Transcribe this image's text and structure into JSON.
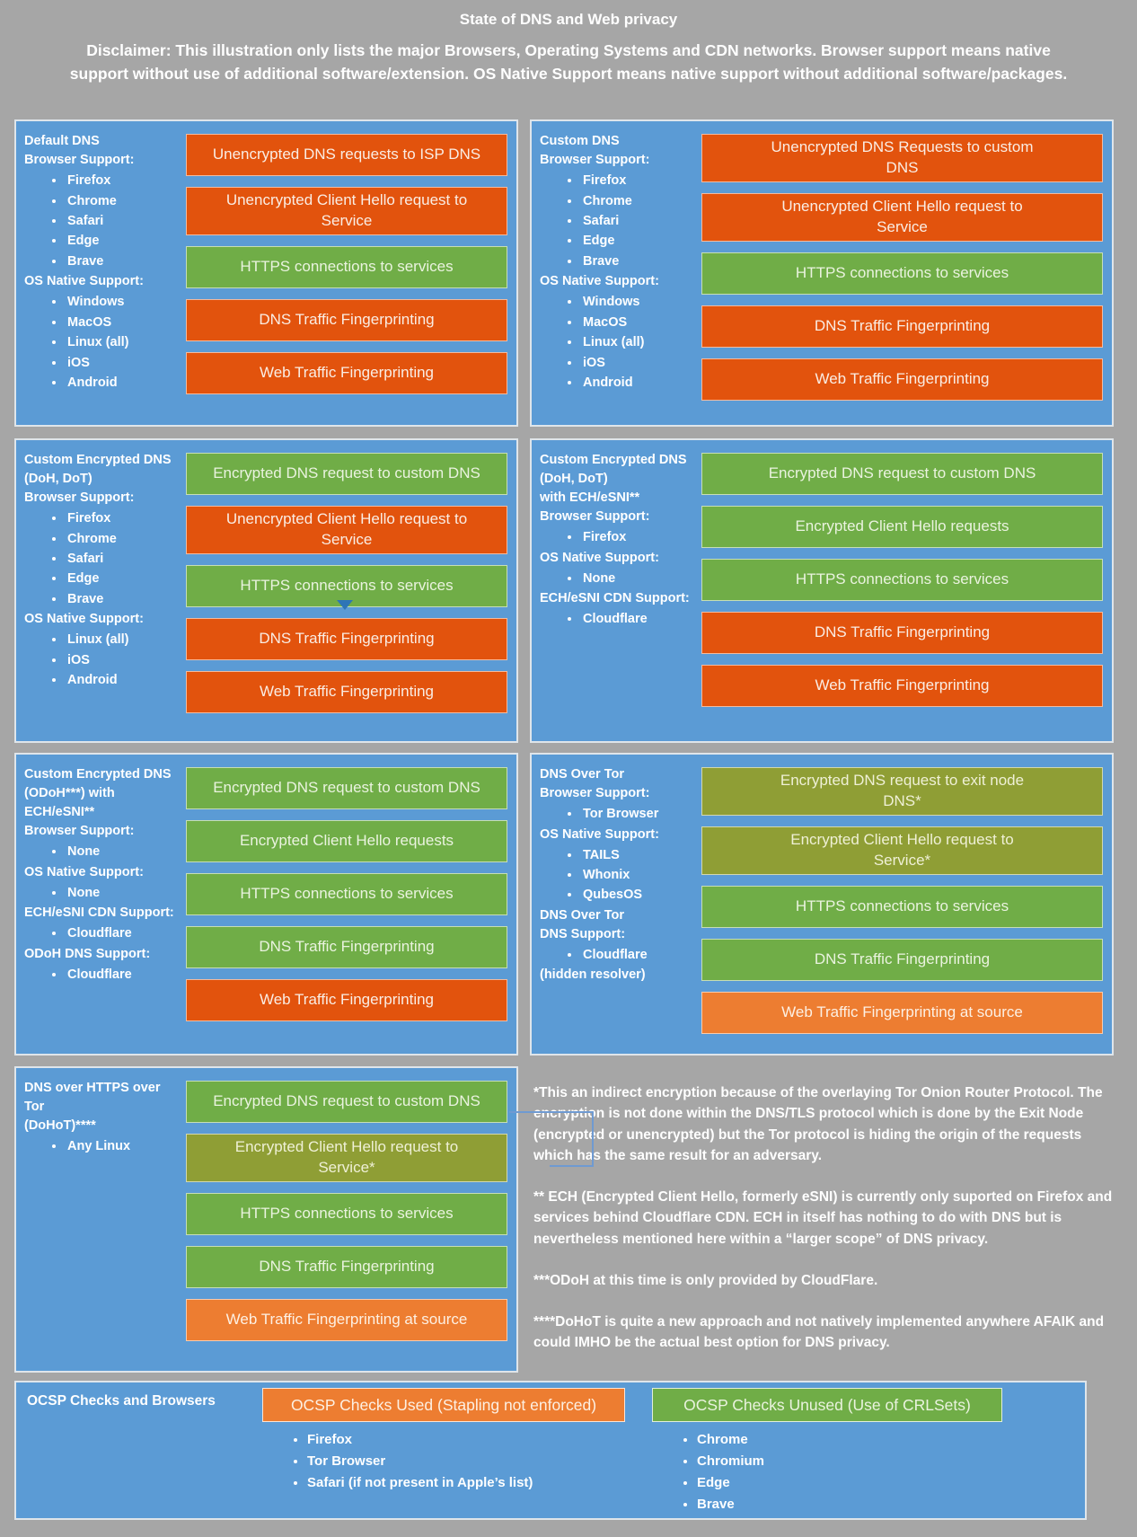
{
  "header": {
    "title": "State of DNS and Web privacy",
    "disclaimer": "Disclaimer: This illustration only lists the major Browsers, Operating Systems and CDN networks. Browser support means native support without use of additional software/extension. OS Native Support means native support without additional software/packages."
  },
  "colors": {
    "page_gray": "#A6A6A6",
    "panel_blue": "#5B9BD5",
    "bad": "#E2530D",
    "good": "#70AD47",
    "tor": "#8F9E35",
    "warn": "#ED7D31",
    "bar_text": {
      "bad": "#FAEDE4",
      "good": "#EAF3DF",
      "tor": "#EFF0D6",
      "warn": "#FDF0E3"
    }
  },
  "panels": [
    {
      "id": "default-dns",
      "sections": [
        {
          "h": "Default DNS"
        },
        {
          "h": "Browser Support:"
        },
        {
          "b": [
            "Firefox",
            "Chrome",
            "Safari",
            "Edge",
            "Brave"
          ]
        },
        {
          "h": "OS Native Support:"
        },
        {
          "b": [
            "Windows",
            "MacOS",
            "Linux (all)",
            "iOS",
            "Android"
          ]
        }
      ],
      "bars": [
        {
          "label": "Unencrypted DNS requests to ISP DNS",
          "color": "bad"
        },
        {
          "label": "Unencrypted Client Hello request to\nService",
          "color": "bad"
        },
        {
          "label": "HTTPS connections to services",
          "color": "good"
        },
        {
          "label": "DNS Traffic Fingerprinting",
          "color": "bad"
        },
        {
          "label": "Web Traffic Fingerprinting",
          "color": "bad"
        }
      ]
    },
    {
      "id": "custom-dns",
      "sections": [
        {
          "h": "Custom DNS"
        },
        {
          "h": "Browser Support:"
        },
        {
          "b": [
            "Firefox",
            "Chrome",
            "Safari",
            "Edge",
            "Brave"
          ]
        },
        {
          "h": "OS Native Support:"
        },
        {
          "b": [
            "Windows",
            "MacOS",
            "Linux (all)",
            "iOS",
            "Android"
          ]
        }
      ],
      "bars": [
        {
          "label": "Unencrypted DNS Requests to custom\nDNS",
          "color": "bad"
        },
        {
          "label": "Unencrypted Client Hello request to\nService",
          "color": "bad"
        },
        {
          "label": "HTTPS connections to services",
          "color": "good"
        },
        {
          "label": "DNS Traffic Fingerprinting",
          "color": "bad"
        },
        {
          "label": "Web Traffic Fingerprinting",
          "color": "bad"
        }
      ]
    },
    {
      "id": "custom-encrypted-dns",
      "sections": [
        {
          "h": "Custom Encrypted DNS\n(DoH, DoT)"
        },
        {
          "h": "Browser Support:"
        },
        {
          "b": [
            "Firefox",
            "Chrome",
            "Safari",
            "Edge",
            "Brave"
          ]
        },
        {
          "h": "OS Native Support:"
        },
        {
          "b": [
            "Linux (all)",
            "iOS",
            "Android"
          ]
        }
      ],
      "bars": [
        {
          "label": "Encrypted DNS request to custom DNS",
          "color": "good"
        },
        {
          "label": "Unencrypted Client Hello request to\nService",
          "color": "bad"
        },
        {
          "label": "HTTPS connections to services",
          "color": "good"
        },
        {
          "label": "DNS Traffic Fingerprinting",
          "color": "bad"
        },
        {
          "label": "Web Traffic Fingerprinting",
          "color": "bad"
        }
      ]
    },
    {
      "id": "custom-encrypted-dns-ech",
      "sections": [
        {
          "h": "Custom Encrypted DNS\n(DoH, DoT)\nwith ECH/eSNI**"
        },
        {
          "h": "Browser Support:"
        },
        {
          "b": [
            "Firefox"
          ]
        },
        {
          "h": "OS Native Support:"
        },
        {
          "b": [
            "None"
          ]
        },
        {
          "h": "ECH/eSNI CDN Support:"
        },
        {
          "b": [
            "Cloudflare"
          ]
        }
      ],
      "bars": [
        {
          "label": "Encrypted DNS request to custom DNS",
          "color": "good"
        },
        {
          "label": "Encrypted Client Hello requests",
          "color": "good"
        },
        {
          "label": "HTTPS connections to services",
          "color": "good"
        },
        {
          "label": "DNS Traffic Fingerprinting",
          "color": "bad"
        },
        {
          "label": "Web Traffic Fingerprinting",
          "color": "bad"
        }
      ]
    },
    {
      "id": "custom-encrypted-odoh",
      "sections": [
        {
          "h": "Custom Encrypted DNS\n(ODoH***) with\nECH/eSNI**"
        },
        {
          "h": "Browser Support:"
        },
        {
          "b": [
            "None"
          ]
        },
        {
          "h": "OS Native Support:"
        },
        {
          "b": [
            "None"
          ]
        },
        {
          "h": "ECH/eSNI CDN Support:"
        },
        {
          "b": [
            "Cloudflare"
          ]
        },
        {
          "h": "ODoH DNS Support:"
        },
        {
          "b": [
            "Cloudflare"
          ]
        }
      ],
      "bars": [
        {
          "label": "Encrypted DNS request to custom DNS",
          "color": "good"
        },
        {
          "label": "Encrypted Client Hello requests",
          "color": "good"
        },
        {
          "label": "HTTPS connections to services",
          "color": "good"
        },
        {
          "label": "DNS Traffic Fingerprinting",
          "color": "good"
        },
        {
          "label": "Web Traffic Fingerprinting",
          "color": "bad"
        }
      ]
    },
    {
      "id": "dns-over-tor",
      "sections": [
        {
          "h": "DNS Over Tor"
        },
        {
          "h": "Browser Support:"
        },
        {
          "b": [
            "Tor Browser"
          ]
        },
        {
          "h": "OS Native Support:"
        },
        {
          "b": [
            "TAILS",
            "Whonix",
            "QubesOS"
          ]
        },
        {
          "h": "DNS Over Tor\nDNS Support:"
        },
        {
          "b": [
            "Cloudflare"
          ]
        },
        {
          "h": "(hidden resolver)"
        }
      ],
      "bars": [
        {
          "label": "Encrypted DNS request to exit node\nDNS*",
          "color": "tor"
        },
        {
          "label": "Encrypted Client Hello request to\nService*",
          "color": "tor"
        },
        {
          "label": "HTTPS connections to services",
          "color": "good"
        },
        {
          "label": "DNS Traffic Fingerprinting",
          "color": "good"
        },
        {
          "label": "Web Traffic Fingerprinting at source",
          "color": "warn"
        }
      ]
    },
    {
      "id": "dohot",
      "sections": [
        {
          "h": "DNS over HTTPS over Tor\n(DoHoT)****"
        },
        {
          "b": [
            "Any Linux"
          ]
        }
      ],
      "bars": [
        {
          "label": "Encrypted DNS request to custom DNS",
          "color": "good"
        },
        {
          "label": "Encrypted Client Hello request to\nService*",
          "color": "tor"
        },
        {
          "label": "HTTPS connections to services",
          "color": "good"
        },
        {
          "label": "DNS Traffic Fingerprinting",
          "color": "good"
        },
        {
          "label": "Web Traffic Fingerprinting at source",
          "color": "warn"
        }
      ]
    }
  ],
  "notes": {
    "paragraphs": [
      "*This an indirect encryption because of the overlaying Tor Onion Router Protocol. The encryption is not done within the DNS/TLS protocol which is done by the Exit Node (encrypted or unencrypted) but the Tor protocol is hiding the origin of the requests which has the same result for an adversary.",
      "** ECH (Encrypted Client Hello, formerly eSNI) is currently only suported on Firefox and services behind Cloudflare CDN. ECH in itself has nothing to do with DNS but is nevertheless mentioned here within a “larger scope” of DNS privacy.",
      "***ODoH at this time is only provided by CloudFlare.",
      "****DoHoT is quite a new approach and not natively implemented anywhere AFAIK and could IMHO be the actual best option for DNS privacy."
    ]
  },
  "ocsp": {
    "label": "OCSP Checks and Browsers",
    "groups": [
      {
        "bar": {
          "label": "OCSP Checks Used (Stapling not enforced)",
          "color": "warn"
        },
        "bullets": [
          "Firefox",
          "Tor Browser",
          "Safari (if not present in Apple’s list)"
        ]
      },
      {
        "bar": {
          "label": "OCSP Checks Unused (Use of CRLSets)",
          "color": "good"
        },
        "bullets": [
          "Chrome",
          "Chromium",
          "Edge",
          "Brave"
        ]
      }
    ]
  }
}
